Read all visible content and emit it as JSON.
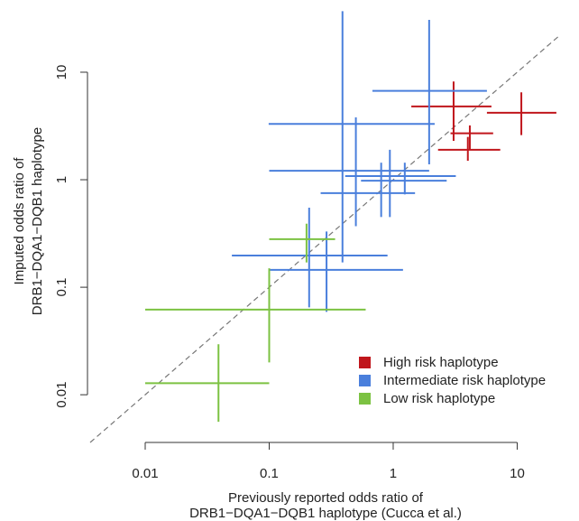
{
  "chart_data": {
    "type": "errorcross",
    "xlabel": [
      "Previously reported odds ratio of",
      "DRB1−DQA1−DQB1 haplotype (Cucca et al.)"
    ],
    "ylabel": [
      "Imputed odds ratio of",
      "DRB1−DQA1−DQB1 haplotype"
    ],
    "log_x": true,
    "log_y": true,
    "xlim": [
      0.0036,
      21.8
    ],
    "ylim": [
      0.0036,
      38.7
    ],
    "xticks": [
      0.01,
      0.1,
      1,
      10
    ],
    "yticks": [
      0.01,
      0.1,
      1,
      10
    ],
    "reference_line": "y=x",
    "legend_position": "lower right",
    "series": [
      {
        "name": "High risk haplotype",
        "color": "#c0161c",
        "x": [
          3.07,
          10.8,
          4.15,
          4.0
        ],
        "x_low": [
          1.4,
          5.7,
          2.9,
          2.3
        ],
        "x_high": [
          6.2,
          20.7,
          6.4,
          7.3
        ],
        "values": [
          4.8,
          4.2,
          2.7,
          1.9
        ],
        "y_low": [
          2.3,
          2.6,
          1.9,
          1.5
        ],
        "y_high": [
          8.2,
          6.5,
          3.2,
          2.5
        ]
      },
      {
        "name": "Intermediate risk haplotype",
        "color": "#4a7fdc",
        "x": [
          0.39,
          1.95,
          0.5,
          0.94,
          1.24,
          0.8,
          0.21,
          0.29
        ],
        "x_low": [
          0.099,
          0.68,
          0.1,
          0.41,
          0.55,
          0.26,
          0.05,
          0.1
        ],
        "x_high": [
          2.16,
          5.7,
          1.95,
          3.2,
          2.7,
          1.5,
          0.9,
          1.2
        ],
        "values": [
          3.3,
          6.7,
          1.21,
          1.08,
          0.98,
          0.75,
          0.197,
          0.145
        ],
        "y_low": [
          0.17,
          1.39,
          0.37,
          0.45,
          0.73,
          0.45,
          0.065,
          0.059
        ],
        "y_high": [
          37,
          30.7,
          3.8,
          1.9,
          1.44,
          1.44,
          0.55,
          0.33
        ]
      },
      {
        "name": "Low risk haplotype",
        "color": "#7cc242",
        "x": [
          0.039,
          0.1,
          0.2
        ],
        "x_low": [
          0.01,
          0.01,
          0.1
        ],
        "x_high": [
          0.1,
          0.6,
          0.34
        ],
        "values": [
          0.0128,
          0.062,
          0.28
        ],
        "y_low": [
          0.0056,
          0.02,
          0.17
        ],
        "y_high": [
          0.0295,
          0.15,
          0.39
        ]
      }
    ]
  }
}
